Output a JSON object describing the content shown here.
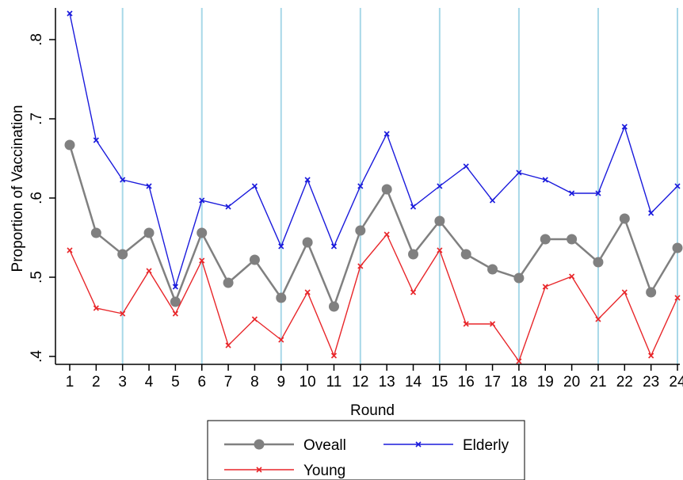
{
  "chart_data": {
    "type": "line",
    "xlabel": "Round",
    "ylabel": "Proportion of Vaccination",
    "x": [
      1,
      2,
      3,
      4,
      5,
      6,
      7,
      8,
      9,
      10,
      11,
      12,
      13,
      14,
      15,
      16,
      17,
      18,
      19,
      20,
      21,
      22,
      23,
      24
    ],
    "x_tick_labels": [
      "1",
      "2",
      "3",
      "4",
      "5",
      "6",
      "7",
      "8",
      "9",
      "10",
      "11",
      "12",
      "13",
      "14",
      "15",
      "16",
      "17",
      "18",
      "19",
      "20",
      "21",
      "22",
      "23",
      "24"
    ],
    "ylim": [
      0.39,
      0.84
    ],
    "y_ticks": [
      0.4,
      0.5,
      0.6,
      0.7,
      0.8
    ],
    "y_tick_labels": [
      ".4",
      ".5",
      ".6",
      ".7",
      ".8"
    ],
    "vertical_reference_lines": [
      3,
      6,
      9,
      12,
      15,
      18,
      21,
      24
    ],
    "reference_line_color": "#a8d8e8",
    "grid": false,
    "legend_position": "bottom",
    "series": [
      {
        "name": "Oveall",
        "color": "#808080",
        "marker": "circle",
        "values": [
          0.667,
          0.556,
          0.529,
          0.556,
          0.469,
          0.556,
          0.493,
          0.522,
          0.474,
          0.544,
          0.463,
          0.559,
          0.611,
          0.529,
          0.571,
          0.529,
          0.51,
          0.499,
          0.548,
          0.548,
          0.519,
          0.574,
          0.481,
          0.537
        ]
      },
      {
        "name": "Elderly",
        "color": "#1a1adc",
        "marker": "x",
        "values": [
          0.833,
          0.673,
          0.623,
          0.615,
          0.488,
          0.597,
          0.589,
          0.615,
          0.539,
          0.623,
          0.539,
          0.615,
          0.681,
          0.589,
          0.615,
          0.64,
          0.597,
          0.632,
          0.623,
          0.606,
          0.606,
          0.69,
          0.581,
          0.615
        ]
      },
      {
        "name": "Young",
        "color": "#e8262a",
        "marker": "x",
        "values": [
          0.534,
          0.461,
          0.454,
          0.508,
          0.454,
          0.521,
          0.414,
          0.447,
          0.421,
          0.481,
          0.401,
          0.514,
          0.554,
          0.481,
          0.534,
          0.441,
          0.441,
          0.394,
          0.488,
          0.501,
          0.447,
          0.481,
          0.401,
          0.474
        ]
      }
    ],
    "legend_order": [
      "Oveall",
      "Elderly",
      "Young"
    ]
  }
}
